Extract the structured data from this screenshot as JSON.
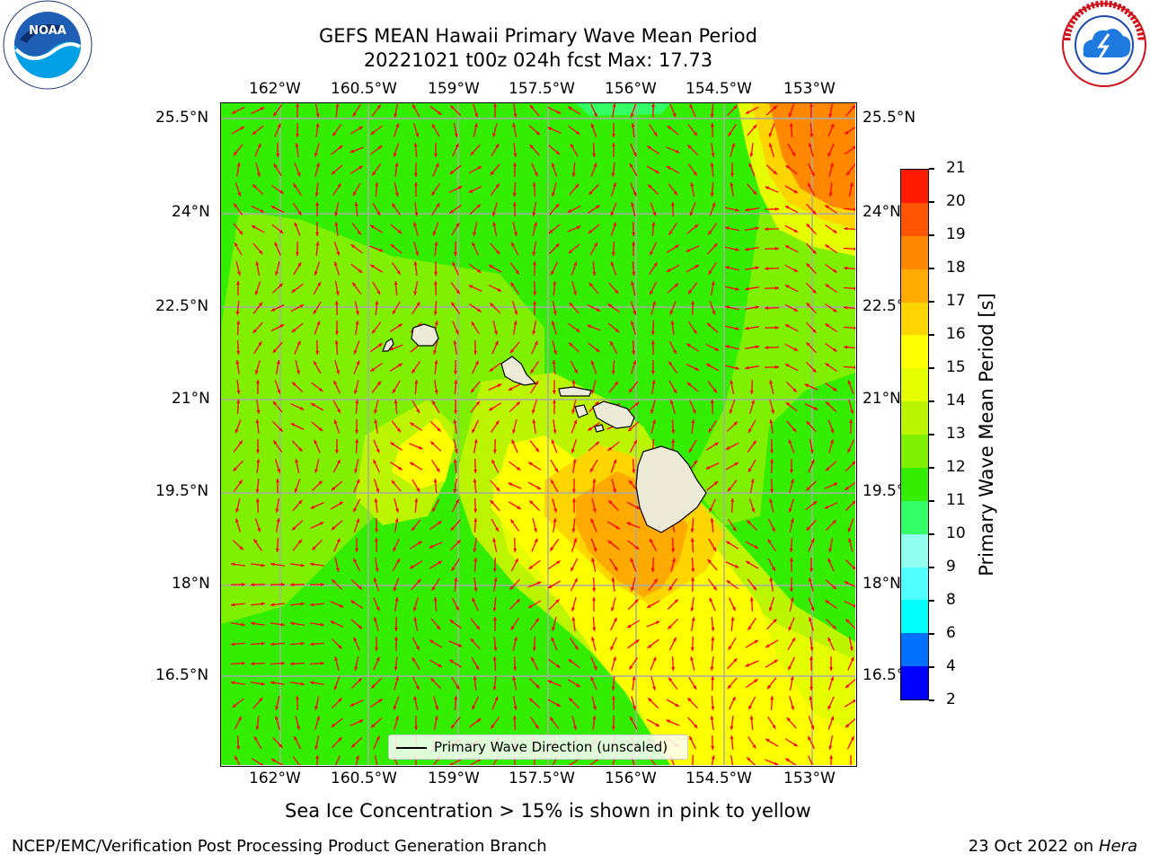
{
  "title": {
    "line1": "GEFS MEAN Hawaii Primary Wave Mean Period",
    "line2": "20221021 t00z 024h fcst   Max: 17.73"
  },
  "logos": {
    "left": {
      "icon": "noaa-logo",
      "text": "NOAA",
      "ring_text": "NATIONAL OCEANIC AND ATMOSPHERIC ADMINISTRATION · U.S. DEPARTMENT OF COMMERCE"
    },
    "right": {
      "icon": "nws-logo",
      "ring_text": "NATIONAL WEATHER SERVICE"
    }
  },
  "map": {
    "lon_labels": [
      "162°W",
      "160.5°W",
      "159°W",
      "157.5°W",
      "156°W",
      "154.5°W",
      "153°W"
    ],
    "lat_labels": [
      "25.5°N",
      "24°N",
      "22.5°N",
      "21°N",
      "19.5°N",
      "18°N",
      "16.5°N"
    ],
    "lon_range": [
      "163°W",
      "152.7°W"
    ],
    "lat_range": [
      "14.8°N",
      "25.6°N"
    ],
    "legend_label": "Primary Wave Direction (unscaled)",
    "arrow_color": "#ff0000",
    "land_color": "#eeead8",
    "grid": true
  },
  "colorbar": {
    "label": "Primary Wave Mean Period [s]",
    "ticks": [
      "2",
      "4",
      "6",
      "8",
      "9",
      "10",
      "11",
      "12",
      "13",
      "14",
      "15",
      "16",
      "17",
      "18",
      "19",
      "20",
      "21"
    ],
    "colors": [
      "#0000ff",
      "#0070ff",
      "#00ffff",
      "#50ffff",
      "#90fff0",
      "#33ff66",
      "#33ee00",
      "#7ff000",
      "#bbf500",
      "#e6ff00",
      "#ffff00",
      "#ffd500",
      "#ffaa00",
      "#ff8800",
      "#ff5500",
      "#ff1a00"
    ]
  },
  "subtitle": "Sea Ice Concentration > 15% is shown in pink to yellow",
  "footer": {
    "left": "NCEP/EMC/Verification Post Processing Product Generation Branch",
    "right_prefix": "23 Oct 2022 on ",
    "right_host": "Hera"
  }
}
